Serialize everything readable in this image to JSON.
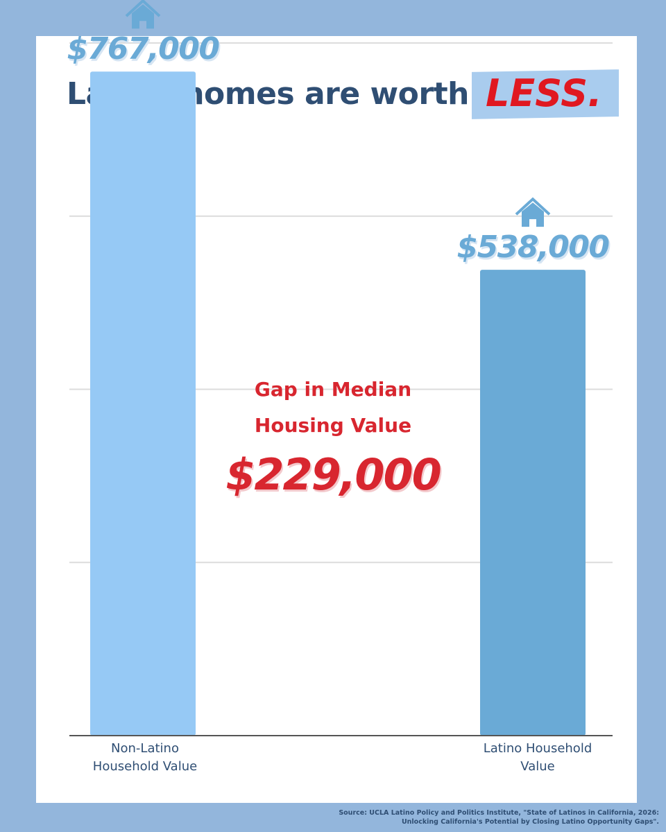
{
  "title": {
    "main": "Latino homes are worth",
    "accent": "LESS."
  },
  "chart_data": {
    "type": "bar",
    "categories": [
      "Non-Latino Household Value",
      "Latino Household Value"
    ],
    "category_lines": [
      [
        "Non-Latino",
        "Household Value"
      ],
      [
        "Latino Household",
        "Value"
      ]
    ],
    "values": [
      767000,
      538000
    ],
    "data_labels": [
      "$767,000",
      "$538,000"
    ],
    "colors": [
      "#96c9f5",
      "#6aaad6"
    ],
    "ylim": [
      0,
      800000
    ],
    "grid": true,
    "xlabel": "",
    "ylabel": ""
  },
  "gap": {
    "label_lines": [
      "Gap in Median",
      "Housing Value"
    ],
    "value": "$229,000"
  },
  "source": {
    "lines": [
      "Source: UCLA Latino Policy and Politics Institute, \"State of Latinos in California, 2026:",
      "Unlocking California's Potential by Closing Latino Opportunity Gaps\"."
    ]
  },
  "colors": {
    "frame": "#93b6dc",
    "title": "#2f4e73",
    "accent": "#e01820",
    "gap": "#d8262f",
    "value_label": "#6aaad6",
    "house_icon": "#6aaad6"
  },
  "icons": [
    "house-icon",
    "house-icon"
  ]
}
